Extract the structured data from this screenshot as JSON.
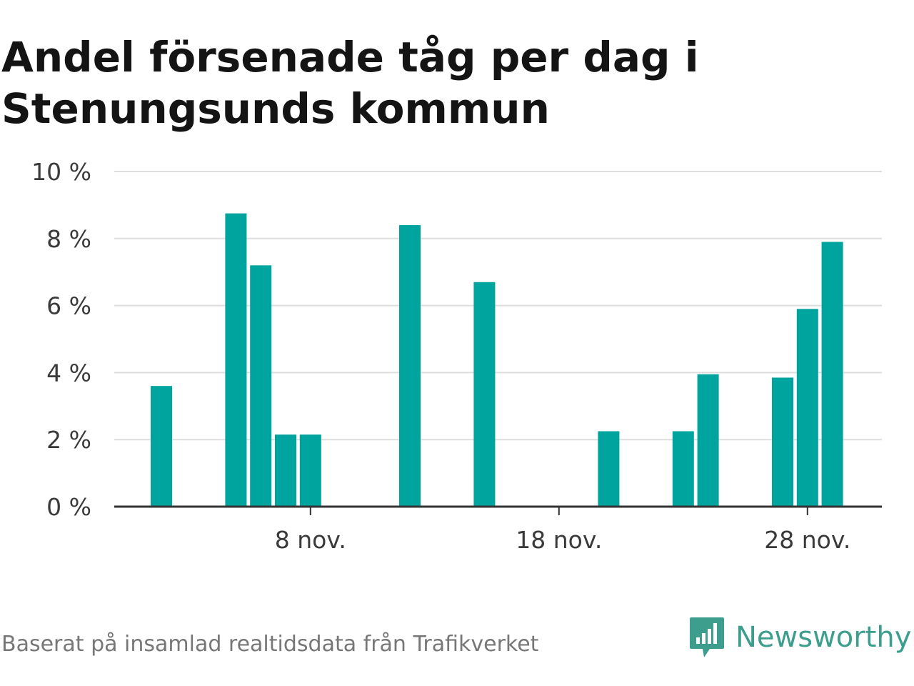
{
  "title": "Andel försenade tåg per dag i Stenungsunds kommun",
  "source": "Baserat på insamlad realtidsdata från Trafikverket",
  "brand": {
    "name": "Newsworthy",
    "color": "#3e9e8e",
    "icon": "chat-bar-chart-icon"
  },
  "colors": {
    "bar": "#00a49e",
    "grid": "#dddddd",
    "axis": "#333333"
  },
  "chart_data": {
    "type": "bar",
    "title": "Andel försenade tåg per dag i Stenungsunds kommun",
    "x_unit": "day of November",
    "x": [
      1,
      2,
      3,
      4,
      5,
      6,
      7,
      8,
      9,
      10,
      11,
      12,
      13,
      14,
      15,
      16,
      17,
      18,
      19,
      20,
      21,
      22,
      23,
      24,
      25,
      26,
      27,
      28,
      29
    ],
    "values": [
      null,
      3.6,
      null,
      null,
      8.75,
      7.2,
      2.15,
      2.15,
      null,
      null,
      null,
      8.4,
      null,
      null,
      6.7,
      null,
      null,
      null,
      null,
      2.25,
      null,
      null,
      2.25,
      3.95,
      null,
      null,
      3.85,
      5.9,
      7.9
    ],
    "ylim": [
      0,
      10
    ],
    "y_ticks": [
      0,
      2,
      4,
      6,
      8,
      10
    ],
    "y_tick_labels": [
      "0 %",
      "2 %",
      "4 %",
      "6 %",
      "8 %",
      "10 %"
    ],
    "x_ticks": [
      8,
      18,
      28
    ],
    "x_tick_labels": [
      "8 nov.",
      "18 nov.",
      "28 nov."
    ],
    "grid": true
  }
}
